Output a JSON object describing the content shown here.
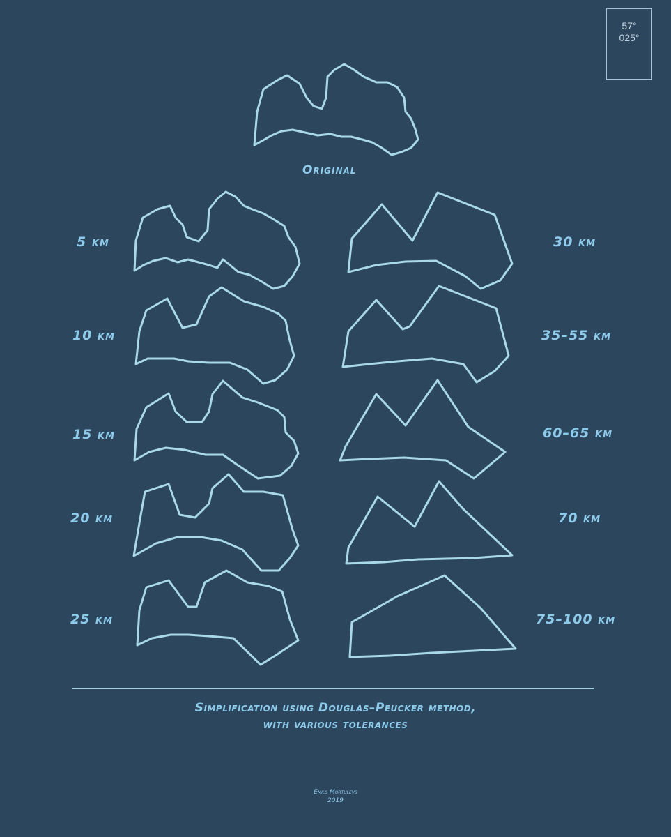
{
  "coordinates": {
    "lat": "57°",
    "lon": "025°"
  },
  "original_label": "Original",
  "levels": [
    {
      "label": "5 km"
    },
    {
      "label": "10 km"
    },
    {
      "label": "15 km"
    },
    {
      "label": "20 km"
    },
    {
      "label": "25 km"
    },
    {
      "label": "30 km"
    },
    {
      "label": "35–55 km"
    },
    {
      "label": "60–65 km"
    },
    {
      "label": "70 km"
    },
    {
      "label": "75–100 km"
    }
  ],
  "caption": {
    "line1": "Simplification using Douglas–Peucker method,",
    "line2": "with various tolerances"
  },
  "credit": {
    "author": "Emils Mortulevs",
    "year": "2019"
  },
  "colors": {
    "background": "#2c465e",
    "outline": "#a9d8e6",
    "label": "#8ecbea"
  }
}
